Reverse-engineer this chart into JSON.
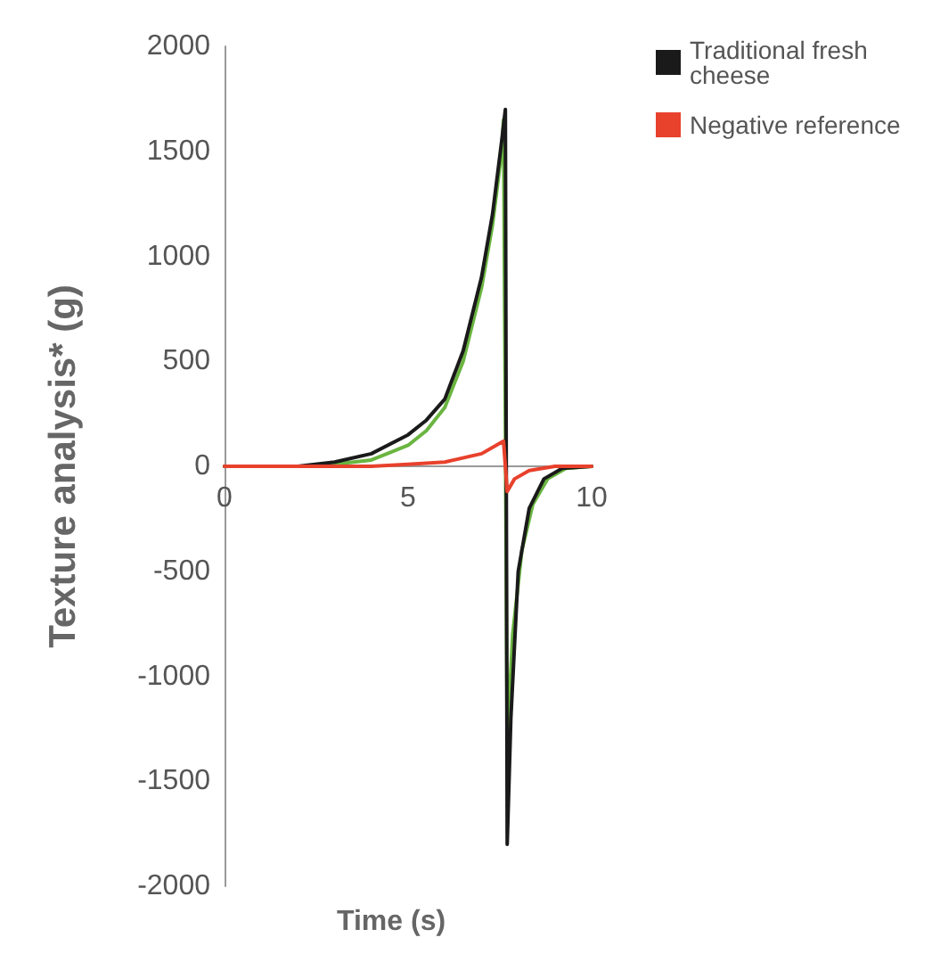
{
  "chart_data": {
    "type": "line",
    "xlabel": "Time (s)",
    "ylabel": "Texture analysis* (g)",
    "xlim": [
      0,
      10
    ],
    "xticks": [
      0,
      5,
      10
    ],
    "ylim": [
      -2000,
      2000
    ],
    "yticks": [
      -2000,
      -1500,
      -1000,
      -500,
      0,
      500,
      1000,
      1500,
      2000
    ],
    "legend": "right",
    "marker": "none",
    "line_style": "solid",
    "grid": false,
    "series": [
      {
        "color": "#6ab540",
        "x": [
          0,
          2.5,
          4,
          5,
          5.5,
          6,
          6.5,
          7,
          7.3,
          7.55,
          7.6,
          7.7,
          7.85,
          8.1,
          8.4,
          8.8,
          9.3,
          10
        ],
        "values": [
          0,
          0,
          30,
          100,
          170,
          280,
          500,
          850,
          1150,
          1500,
          1650,
          -1300,
          -800,
          -400,
          -180,
          -60,
          -10,
          0
        ]
      },
      {
        "name": "Traditional fresh cheese",
        "color": "#1a1a1a",
        "x": [
          0,
          2,
          3,
          4,
          5,
          5.5,
          6,
          6.5,
          7,
          7.3,
          7.55,
          7.65,
          7.7,
          7.8,
          8,
          8.3,
          8.7,
          9.2,
          10
        ],
        "values": [
          0,
          0,
          20,
          60,
          150,
          220,
          320,
          550,
          900,
          1200,
          1550,
          1700,
          -1800,
          -1200,
          -500,
          -200,
          -60,
          -10,
          0
        ]
      },
      {
        "name": "Negative reference",
        "color": "#e8412c",
        "x": [
          0,
          4,
          5,
          6,
          7,
          7.6,
          7.7,
          7.9,
          8.3,
          9,
          10
        ],
        "values": [
          0,
          0,
          10,
          20,
          60,
          120,
          -120,
          -60,
          -20,
          0,
          0
        ]
      }
    ]
  }
}
